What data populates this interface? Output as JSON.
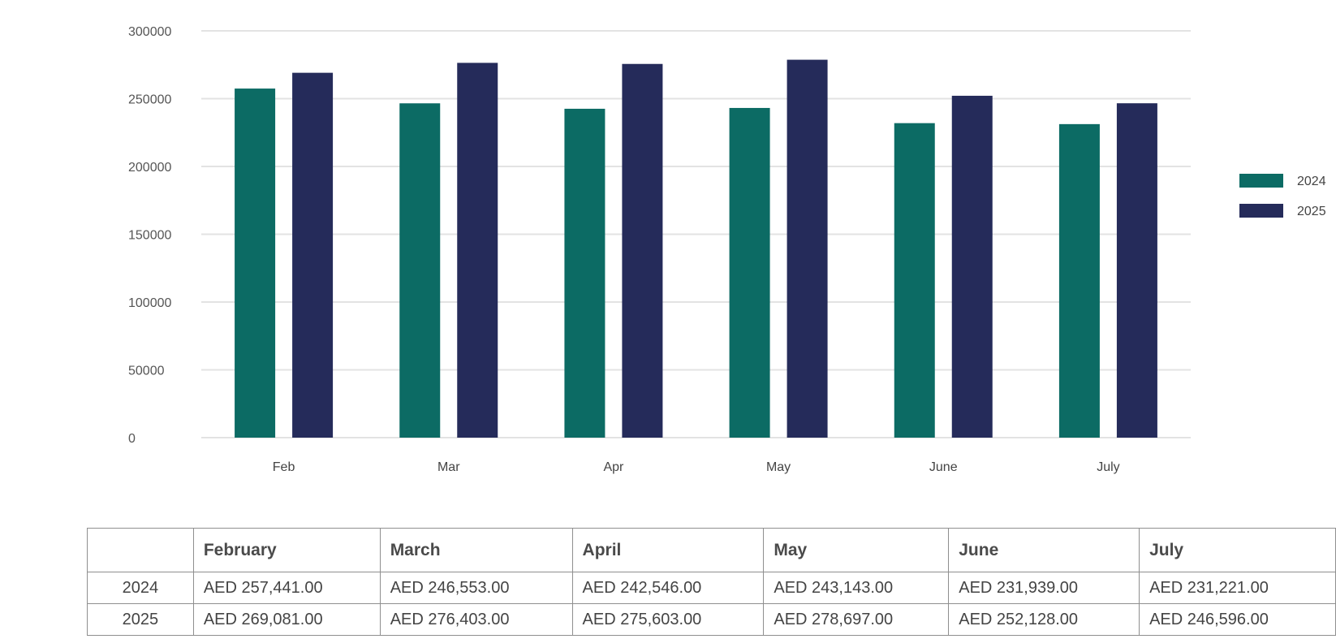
{
  "chart_data": {
    "type": "bar",
    "categories": [
      "Feb",
      "Mar",
      "Apr",
      "May",
      "June",
      "July"
    ],
    "series": [
      {
        "name": "2024",
        "color": "#0c6b64",
        "values": [
          257441,
          246553,
          242546,
          243143,
          231939,
          231221
        ]
      },
      {
        "name": "2025",
        "color": "#252b5a",
        "values": [
          269081,
          276403,
          275603,
          278697,
          252128,
          246596
        ]
      }
    ],
    "yticks": [
      "0",
      "50000",
      "100000",
      "150000",
      "200000",
      "250000",
      "300000"
    ],
    "ylim": [
      0,
      300000
    ],
    "grid": true,
    "legend_position": "right",
    "title": "",
    "xlabel": "",
    "ylabel": ""
  },
  "table": {
    "corner": "",
    "headers": [
      "February",
      "March",
      "April",
      "May",
      "June",
      "July"
    ],
    "rows": [
      {
        "year": "2024",
        "cells": [
          "AED 257,441.00",
          "AED 246,553.00",
          "AED 242,546.00",
          "AED 243,143.00",
          "AED 231,939.00",
          "AED 231,221.00"
        ]
      },
      {
        "year": "2025",
        "cells": [
          "AED 269,081.00",
          "AED 276,403.00",
          "AED 275,603.00",
          "AED 278,697.00",
          "AED 252,128.00",
          "AED 246,596.00"
        ]
      }
    ]
  }
}
